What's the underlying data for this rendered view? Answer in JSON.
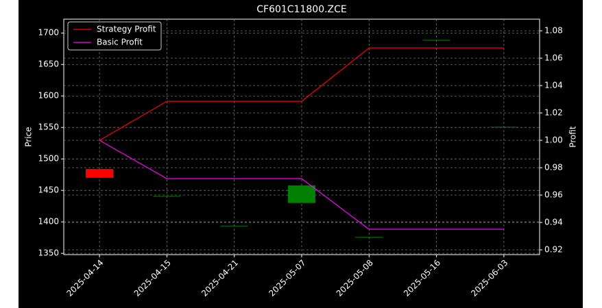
{
  "chart_data": {
    "type": "candlestick",
    "title": "CF601C11800.ZCE",
    "categories": [
      "2025-04-14",
      "2025-04-15",
      "2025-04-21",
      "2025-05-07",
      "2025-05-08",
      "2025-05-16",
      "2025-06-03"
    ],
    "open": [
      1484,
      1441,
      1394,
      1430,
      1376,
      1689,
      1551
    ],
    "close": [
      1470,
      1441,
      1394,
      1458,
      1376,
      1689,
      1551
    ],
    "up_color": "#008000",
    "down_color": "#ff0000",
    "ylabel": "Price",
    "y2label": "Profit",
    "ylim": [
      1348,
      1722
    ],
    "yticks": [
      1350,
      1400,
      1450,
      1500,
      1550,
      1600,
      1650,
      1700
    ],
    "y2lim": [
      0.9165,
      1.0885
    ],
    "y2ticks": [
      0.92,
      0.94,
      0.96,
      0.98,
      {
        "value": 1,
        "label": "1.00"
      },
      1.02,
      1.04,
      1.06,
      1.08
    ],
    "series": [
      {
        "name": "Strategy Profit",
        "color": "#ff0000",
        "axis": "y2",
        "values": [
          1.0,
          1.0285,
          1.0285,
          1.0285,
          1.0675,
          1.0675,
          1.0675
        ]
      },
      {
        "name": "Basic Profit",
        "color": "#ff00ff",
        "axis": "y2",
        "values": [
          1.0,
          0.972,
          0.972,
          0.972,
          0.935,
          0.935,
          0.935
        ]
      }
    ],
    "grid": true,
    "legend": "upper-left"
  }
}
